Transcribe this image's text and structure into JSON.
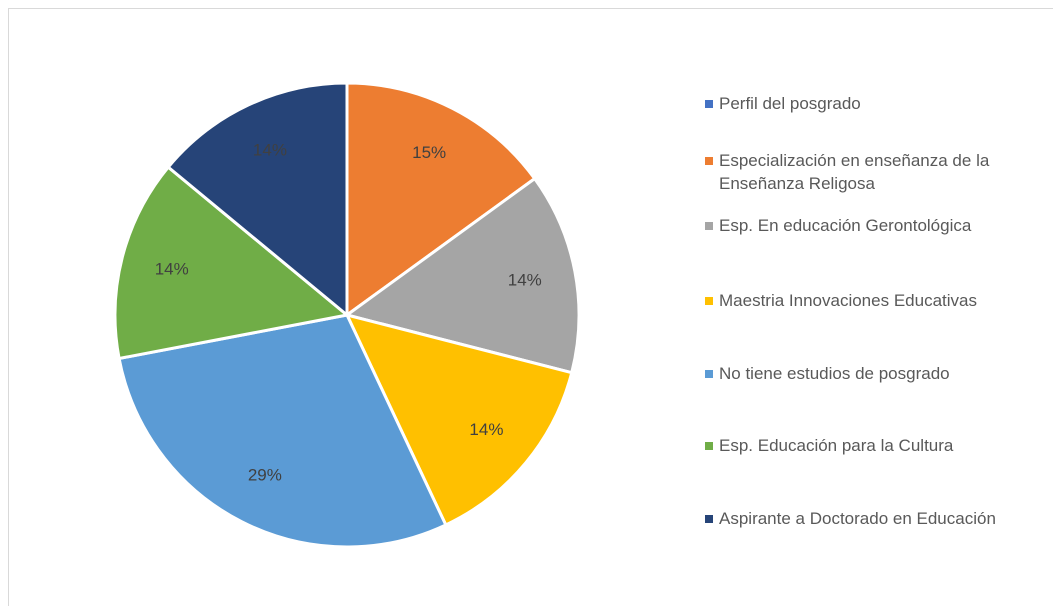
{
  "chart_data": {
    "type": "pie",
    "categories": [
      "Perfil del posgrado",
      "Especialización en enseñanza de la Enseñanza Religosa",
      "Esp. En educación Gerontológica",
      "Maestria Innovaciones Educativas",
      "No tiene estudios de posgrado",
      "Esp. Educación para la Cultura",
      "Aspirante a Doctorado en Educación"
    ],
    "values": [
      0,
      15,
      14,
      14,
      29,
      14,
      14
    ],
    "value_labels": [
      null,
      "15%",
      "14%",
      "14%",
      "29%",
      "14%",
      "14%"
    ],
    "colors": [
      "#4472c4",
      "#ed7d31",
      "#a5a5a5",
      "#ffc000",
      "#5b9bd5",
      "#70ad47",
      "#264478"
    ],
    "legend": "right"
  }
}
